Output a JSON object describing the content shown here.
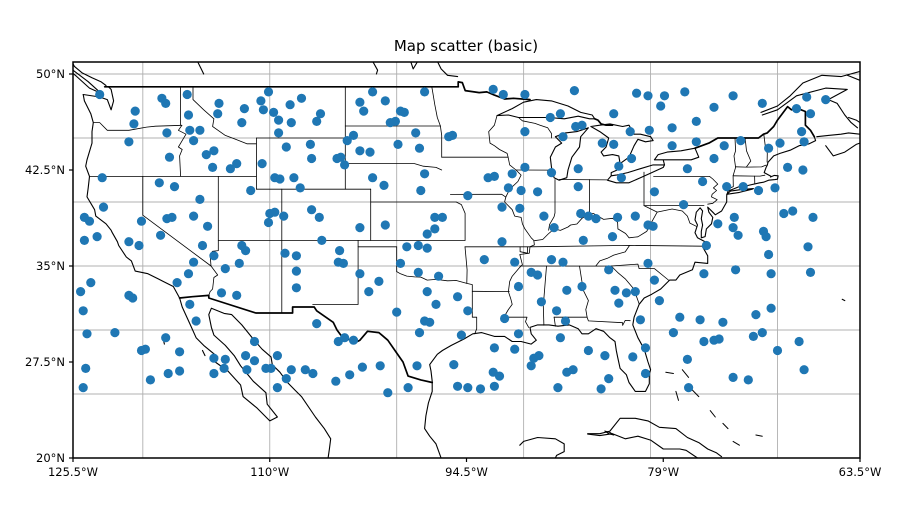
{
  "title": "Map scatter (basic)",
  "chart_data": {
    "type": "scatter",
    "title": "Map scatter (basic)",
    "subtitle": "",
    "projection": "equirectangular map of continental United States with coastlines and state borders",
    "extent": {
      "lon_min": -125.5,
      "lon_max": -63.5,
      "lat_min": 20,
      "lat_max": 51
    },
    "xlabel": "",
    "ylabel": "",
    "x_ticks": [
      {
        "value": -125.5,
        "label": "125.5°W"
      },
      {
        "value": -110.0,
        "label": "110°W"
      },
      {
        "value": -94.5,
        "label": "94.5°W"
      },
      {
        "value": -79.0,
        "label": "79°W"
      },
      {
        "value": -63.5,
        "label": "63.5°W"
      }
    ],
    "y_ticks": [
      {
        "value": 50.0,
        "label": "50°N"
      },
      {
        "value": 42.5,
        "label": "42.5°N"
      },
      {
        "value": 35.0,
        "label": "35°N"
      },
      {
        "value": 27.5,
        "label": "27.5°N"
      },
      {
        "value": 20.0,
        "label": "20°N"
      }
    ],
    "gridlines": {
      "lon_values": [
        -120,
        -110,
        -100,
        -90,
        -80,
        -70
      ],
      "lat_values": [
        50,
        45,
        40,
        35,
        30,
        25
      ],
      "color": "#b0b0b0"
    },
    "marker": {
      "color": "#1f77b4",
      "radius_px": 4.6
    },
    "map_line_color": "#000000",
    "points": [
      [
        -123.4,
        48.4
      ],
      [
        -120.6,
        47.1
      ],
      [
        -120.7,
        46.1
      ],
      [
        -118.5,
        48.1
      ],
      [
        -118.2,
        47.7
      ],
      [
        -118.1,
        45.4
      ],
      [
        -117.9,
        43.5
      ],
      [
        -121.1,
        44.7
      ],
      [
        -123.2,
        41.9
      ],
      [
        -118.7,
        41.5
      ],
      [
        -117.5,
        41.2
      ],
      [
        -116.5,
        48.4
      ],
      [
        -116.4,
        46.8
      ],
      [
        -116.3,
        45.6
      ],
      [
        -115.5,
        45.6
      ],
      [
        -116.0,
        44.8
      ],
      [
        -115.0,
        43.7
      ],
      [
        -114.4,
        44.0
      ],
      [
        -114.5,
        42.7
      ],
      [
        -113.1,
        42.6
      ],
      [
        -112.6,
        43.0
      ],
      [
        -114.0,
        47.7
      ],
      [
        -114.1,
        46.9
      ],
      [
        -112.2,
        46.2
      ],
      [
        -112.0,
        47.3
      ],
      [
        -110.7,
        47.9
      ],
      [
        -110.5,
        47.2
      ],
      [
        -110.1,
        48.6
      ],
      [
        -109.7,
        47.0
      ],
      [
        -109.3,
        46.4
      ],
      [
        -108.3,
        46.2
      ],
      [
        -108.4,
        47.6
      ],
      [
        -107.5,
        48.1
      ],
      [
        -109.3,
        45.4
      ],
      [
        -108.7,
        44.3
      ],
      [
        -106.3,
        46.3
      ],
      [
        -106.0,
        46.9
      ],
      [
        -106.8,
        44.5
      ],
      [
        -106.7,
        43.4
      ],
      [
        -110.6,
        43.0
      ],
      [
        -109.6,
        41.9
      ],
      [
        -109.2,
        41.8
      ],
      [
        -108.1,
        41.9
      ],
      [
        -107.6,
        41.1
      ],
      [
        -111.5,
        40.9
      ],
      [
        -101.9,
        48.6
      ],
      [
        -102.9,
        47.8
      ],
      [
        -100.9,
        47.9
      ],
      [
        -102.6,
        47.1
      ],
      [
        -99.7,
        47.1
      ],
      [
        -99.4,
        47.0
      ],
      [
        -100.5,
        46.2
      ],
      [
        -100.1,
        46.3
      ],
      [
        -97.8,
        48.6
      ],
      [
        -103.4,
        45.2
      ],
      [
        -103.9,
        44.8
      ],
      [
        -102.9,
        44.0
      ],
      [
        -102.1,
        43.9
      ],
      [
        -99.9,
        44.5
      ],
      [
        -98.5,
        45.4
      ],
      [
        -98.2,
        44.2
      ],
      [
        -104.4,
        43.5
      ],
      [
        -104.1,
        42.9
      ],
      [
        -101.9,
        41.9
      ],
      [
        -101.0,
        41.3
      ],
      [
        -97.8,
        42.2
      ],
      [
        -98.1,
        40.9
      ],
      [
        -95.9,
        45.1
      ],
      [
        -95.6,
        45.2
      ],
      [
        -92.4,
        48.8
      ],
      [
        -91.6,
        48.4
      ],
      [
        -89.9,
        48.4
      ],
      [
        -86.0,
        48.7
      ],
      [
        -89.9,
        45.5
      ],
      [
        -87.9,
        46.6
      ],
      [
        -87.1,
        46.9
      ],
      [
        -85.9,
        45.9
      ],
      [
        -85.4,
        46.0
      ],
      [
        -86.9,
        45.1
      ],
      [
        -89.9,
        42.7
      ],
      [
        -90.9,
        42.2
      ],
      [
        -92.8,
        41.9
      ],
      [
        -92.3,
        42.0
      ],
      [
        -91.2,
        41.1
      ],
      [
        -90.2,
        40.9
      ],
      [
        -88.9,
        40.8
      ],
      [
        -87.8,
        42.3
      ],
      [
        -85.7,
        41.2
      ],
      [
        -85.7,
        42.6
      ],
      [
        -104.7,
        43.4
      ],
      [
        -81.1,
        48.5
      ],
      [
        -80.2,
        48.3
      ],
      [
        -78.9,
        48.3
      ],
      [
        -77.3,
        48.6
      ],
      [
        -79.2,
        47.5
      ],
      [
        -73.5,
        48.3
      ],
      [
        -75.0,
        47.4
      ],
      [
        -82.9,
        46.9
      ],
      [
        -76.4,
        46.3
      ],
      [
        -78.3,
        45.8
      ],
      [
        -71.2,
        47.7
      ],
      [
        -68.5,
        47.3
      ],
      [
        -67.4,
        46.9
      ],
      [
        -67.7,
        48.2
      ],
      [
        -66.2,
        48.0
      ],
      [
        -81.6,
        45.5
      ],
      [
        -80.1,
        45.6
      ],
      [
        -83.8,
        44.6
      ],
      [
        -82.9,
        44.5
      ],
      [
        -81.5,
        43.4
      ],
      [
        -82.5,
        42.8
      ],
      [
        -82.3,
        41.9
      ],
      [
        -78.3,
        44.4
      ],
      [
        -76.4,
        44.7
      ],
      [
        -77.1,
        42.6
      ],
      [
        -75.9,
        41.6
      ],
      [
        -75.0,
        43.4
      ],
      [
        -74.2,
        44.4
      ],
      [
        -72.9,
        44.8
      ],
      [
        -70.7,
        44.2
      ],
      [
        -69.8,
        44.6
      ],
      [
        -68.1,
        45.5
      ],
      [
        -67.9,
        44.7
      ],
      [
        -69.2,
        42.7
      ],
      [
        -68.0,
        42.5
      ],
      [
        -70.2,
        41.1
      ],
      [
        -71.5,
        40.9
      ],
      [
        -72.7,
        41.2
      ],
      [
        -79.7,
        40.8
      ],
      [
        -74.0,
        41.2
      ],
      [
        -123.1,
        39.6
      ],
      [
        -124.6,
        38.8
      ],
      [
        -124.2,
        38.5
      ],
      [
        -124.6,
        37.0
      ],
      [
        -123.6,
        37.3
      ],
      [
        -121.1,
        36.9
      ],
      [
        -120.3,
        36.6
      ],
      [
        -120.1,
        38.5
      ],
      [
        -118.1,
        38.7
      ],
      [
        -117.7,
        38.8
      ],
      [
        -118.6,
        37.4
      ],
      [
        -116.0,
        38.9
      ],
      [
        -115.5,
        40.2
      ],
      [
        -114.9,
        38.1
      ],
      [
        -115.3,
        36.6
      ],
      [
        -116.0,
        35.3
      ],
      [
        -116.4,
        34.4
      ],
      [
        -114.4,
        35.8
      ],
      [
        -113.5,
        34.8
      ],
      [
        -112.4,
        35.2
      ],
      [
        -111.9,
        36.2
      ],
      [
        -112.2,
        36.6
      ],
      [
        -110.0,
        39.1
      ],
      [
        -109.6,
        39.2
      ],
      [
        -108.9,
        38.9
      ],
      [
        -106.7,
        39.4
      ],
      [
        -106.1,
        38.8
      ],
      [
        -110.1,
        38.4
      ],
      [
        -108.8,
        36.0
      ],
      [
        -107.9,
        35.8
      ],
      [
        -107.9,
        34.6
      ],
      [
        -105.9,
        37.0
      ],
      [
        -107.9,
        33.3
      ],
      [
        -124.1,
        33.7
      ],
      [
        -124.9,
        33.0
      ],
      [
        -121.1,
        32.7
      ],
      [
        -120.8,
        32.5
      ],
      [
        -124.7,
        31.5
      ],
      [
        -117.3,
        33.7
      ],
      [
        -116.3,
        32.0
      ],
      [
        -113.8,
        32.9
      ],
      [
        -112.6,
        32.7
      ],
      [
        -115.8,
        30.7
      ],
      [
        -106.3,
        30.5
      ],
      [
        -102.9,
        38.0
      ],
      [
        -100.9,
        38.2
      ],
      [
        -97.6,
        37.5
      ],
      [
        -97.0,
        37.9
      ],
      [
        -97.0,
        38.8
      ],
      [
        -96.4,
        38.8
      ],
      [
        -99.2,
        36.5
      ],
      [
        -98.3,
        36.6
      ],
      [
        -97.6,
        36.4
      ],
      [
        -104.5,
        36.2
      ],
      [
        -104.6,
        35.3
      ],
      [
        -104.2,
        35.2
      ],
      [
        -102.9,
        34.4
      ],
      [
        -101.4,
        33.8
      ],
      [
        -102.2,
        33.0
      ],
      [
        -99.7,
        35.2
      ],
      [
        -98.3,
        34.5
      ],
      [
        -96.7,
        34.2
      ],
      [
        -97.6,
        33.0
      ],
      [
        -96.9,
        32.0
      ],
      [
        -100.0,
        31.4
      ],
      [
        -97.8,
        30.7
      ],
      [
        -97.4,
        30.6
      ],
      [
        -95.2,
        32.6
      ],
      [
        -94.4,
        31.5
      ],
      [
        -94.4,
        40.5
      ],
      [
        -93.1,
        35.5
      ],
      [
        -91.7,
        36.9
      ],
      [
        -90.7,
        35.3
      ],
      [
        -89.4,
        34.5
      ],
      [
        -90.4,
        33.4
      ],
      [
        -88.9,
        34.3
      ],
      [
        -90.3,
        39.5
      ],
      [
        -91.7,
        39.6
      ],
      [
        -88.4,
        38.9
      ],
      [
        -87.6,
        38.0
      ],
      [
        -85.5,
        39.1
      ],
      [
        -84.9,
        38.9
      ],
      [
        -84.3,
        38.7
      ],
      [
        -85.3,
        37.0
      ],
      [
        -87.8,
        35.5
      ],
      [
        -86.9,
        35.3
      ],
      [
        -88.6,
        32.2
      ],
      [
        -87.4,
        31.5
      ],
      [
        -86.6,
        33.1
      ],
      [
        -85.4,
        33.4
      ],
      [
        -86.7,
        30.7
      ],
      [
        -91.5,
        30.9
      ],
      [
        -77.4,
        39.8
      ],
      [
        -81.2,
        38.9
      ],
      [
        -82.6,
        38.8
      ],
      [
        -80.2,
        38.2
      ],
      [
        -79.8,
        38.1
      ],
      [
        -83.0,
        37.3
      ],
      [
        -74.7,
        38.3
      ],
      [
        -73.4,
        38.8
      ],
      [
        -73.5,
        38.0
      ],
      [
        -73.1,
        37.4
      ],
      [
        -71.1,
        37.7
      ],
      [
        -70.9,
        37.3
      ],
      [
        -69.5,
        39.1
      ],
      [
        -68.8,
        39.3
      ],
      [
        -67.2,
        38.8
      ],
      [
        -70.7,
        35.9
      ],
      [
        -67.6,
        36.5
      ],
      [
        -67.4,
        34.5
      ],
      [
        -70.5,
        34.4
      ],
      [
        -75.6,
        36.6
      ],
      [
        -75.8,
        34.4
      ],
      [
        -73.3,
        34.7
      ],
      [
        -80.2,
        35.2
      ],
      [
        -79.7,
        33.9
      ],
      [
        -83.3,
        34.7
      ],
      [
        -82.8,
        33.1
      ],
      [
        -81.9,
        32.9
      ],
      [
        -81.2,
        33.0
      ],
      [
        -82.5,
        32.1
      ],
      [
        -79.3,
        32.3
      ],
      [
        -80.8,
        30.8
      ],
      [
        -77.7,
        31.0
      ],
      [
        -76.1,
        30.8
      ],
      [
        -74.3,
        30.6
      ],
      [
        -71.7,
        31.2
      ],
      [
        -70.5,
        31.7
      ],
      [
        -124.4,
        29.7
      ],
      [
        -122.2,
        29.8
      ],
      [
        -120.1,
        28.4
      ],
      [
        -119.8,
        28.5
      ],
      [
        -118.2,
        29.4
      ],
      [
        -117.1,
        28.3
      ],
      [
        -118.0,
        26.6
      ],
      [
        -117.1,
        26.8
      ],
      [
        -124.5,
        27.0
      ],
      [
        -124.7,
        25.5
      ],
      [
        -119.4,
        26.1
      ],
      [
        -114.4,
        27.8
      ],
      [
        -113.5,
        27.7
      ],
      [
        -114.4,
        26.6
      ],
      [
        -113.6,
        27.0
      ],
      [
        -111.8,
        26.9
      ],
      [
        -111.2,
        29.1
      ],
      [
        -111.9,
        28.0
      ],
      [
        -111.2,
        27.6
      ],
      [
        -110.3,
        27.0
      ],
      [
        -109.9,
        27.0
      ],
      [
        -109.4,
        28.0
      ],
      [
        -108.3,
        26.9
      ],
      [
        -107.2,
        26.9
      ],
      [
        -106.6,
        26.6
      ],
      [
        -108.7,
        26.2
      ],
      [
        -109.4,
        25.5
      ],
      [
        -104.6,
        29.1
      ],
      [
        -104.1,
        29.4
      ],
      [
        -103.4,
        29.2
      ],
      [
        -102.7,
        27.1
      ],
      [
        -103.7,
        26.5
      ],
      [
        -104.8,
        26.0
      ],
      [
        -101.3,
        27.2
      ],
      [
        -100.7,
        25.1
      ],
      [
        -98.4,
        27.2
      ],
      [
        -99.1,
        25.5
      ],
      [
        -98.2,
        29.8
      ],
      [
        -94.9,
        29.6
      ],
      [
        -95.5,
        27.3
      ],
      [
        -95.2,
        25.6
      ],
      [
        -94.4,
        25.5
      ],
      [
        -93.4,
        25.4
      ],
      [
        -92.3,
        28.6
      ],
      [
        -90.7,
        28.5
      ],
      [
        -92.4,
        26.7
      ],
      [
        -91.9,
        26.4
      ],
      [
        -92.3,
        25.6
      ],
      [
        -90.4,
        29.7
      ],
      [
        -89.4,
        27.2
      ],
      [
        -89.2,
        27.8
      ],
      [
        -88.8,
        28.0
      ],
      [
        -87.1,
        29.4
      ],
      [
        -84.9,
        28.4
      ],
      [
        -86.6,
        26.7
      ],
      [
        -86.1,
        26.9
      ],
      [
        -87.3,
        25.5
      ],
      [
        -83.6,
        28.0
      ],
      [
        -81.4,
        27.9
      ],
      [
        -80.4,
        28.6
      ],
      [
        -80.4,
        26.6
      ],
      [
        -83.3,
        26.2
      ],
      [
        -83.9,
        25.4
      ],
      [
        -78.2,
        29.8
      ],
      [
        -77.1,
        27.7
      ],
      [
        -75.8,
        29.1
      ],
      [
        -75.0,
        29.2
      ],
      [
        -74.6,
        29.3
      ],
      [
        -71.9,
        29.5
      ],
      [
        -71.2,
        29.8
      ],
      [
        -70.0,
        28.4
      ],
      [
        -68.3,
        29.1
      ],
      [
        -67.9,
        26.9
      ],
      [
        -77.0,
        25.5
      ],
      [
        -73.5,
        26.3
      ],
      [
        -72.3,
        26.1
      ]
    ]
  }
}
